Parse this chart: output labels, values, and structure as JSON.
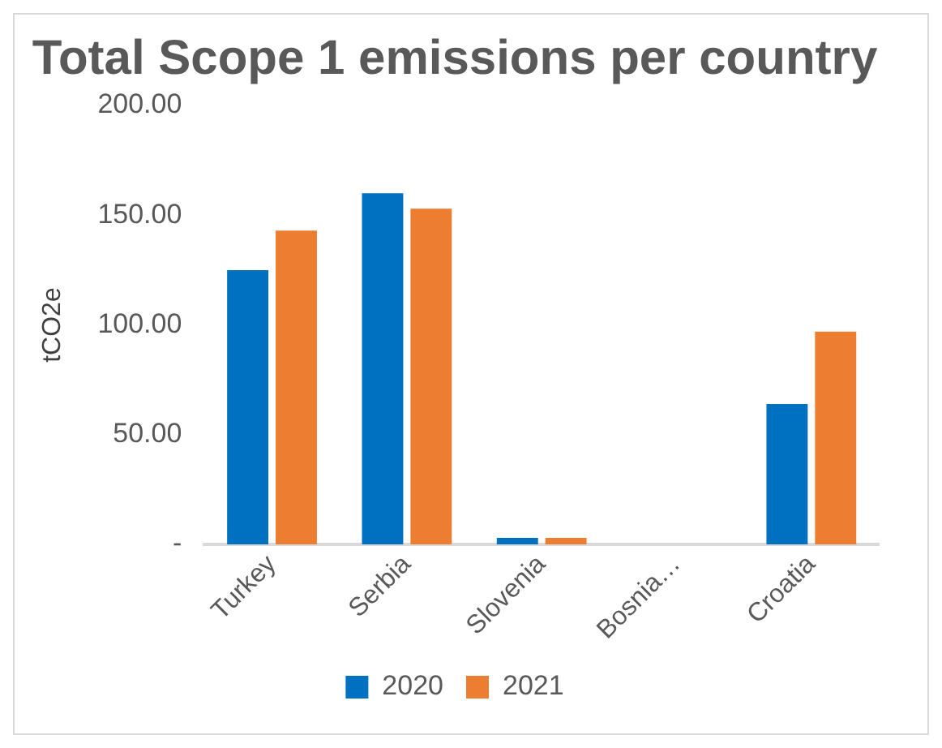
{
  "chart_data": {
    "type": "bar",
    "title": "Total Scope 1 emissions per country",
    "ylabel": "tCO2e",
    "categories": [
      "Turkey",
      "Serbia",
      "Slovenia",
      "Bosnia…",
      "Croatia"
    ],
    "series": [
      {
        "name": "2020",
        "color": "#0070c0",
        "values": [
          125,
          160,
          3,
          0,
          64
        ]
      },
      {
        "name": "2021",
        "color": "#ed7d31",
        "values": [
          143,
          153,
          3,
          0,
          97
        ]
      }
    ],
    "ylim": [
      0,
      200
    ],
    "yticks": [
      {
        "value": 0,
        "label": "-"
      },
      {
        "value": 50,
        "label": "50.00"
      },
      {
        "value": 100,
        "label": "100.00"
      },
      {
        "value": 150,
        "label": "150.00"
      },
      {
        "value": 200,
        "label": "200.00"
      }
    ],
    "grid": false,
    "legend": "bottom"
  }
}
